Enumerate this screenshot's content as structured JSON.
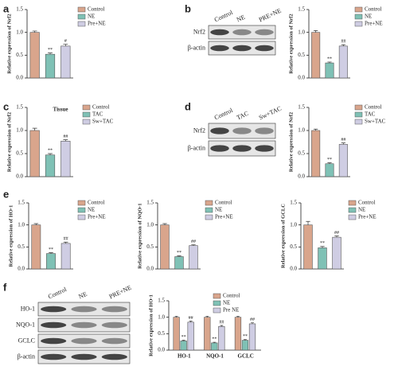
{
  "panel_labels": [
    "a",
    "b",
    "c",
    "d",
    "e",
    "f"
  ],
  "blots": [
    {
      "lanes": [
        "Control",
        "NE",
        "PRE+NE"
      ],
      "rows": [
        "Nrf2",
        "β-actin"
      ]
    },
    {
      "lanes": [
        "Control",
        "TAC",
        "Sw+TAC"
      ],
      "rows": [
        "Nrf2",
        "β-actin"
      ]
    },
    {
      "lanes": [
        "Control",
        "NE",
        "PRE+NE"
      ],
      "rows": [
        "HO-1",
        "NQO-1",
        "GCLC",
        "β-actin"
      ]
    }
  ],
  "chart_data": [
    {
      "type": "bar",
      "y_label": "Relative expression of Nrf2",
      "categories": [
        "Control",
        "NE",
        "Pre+NE"
      ],
      "values": [
        1.0,
        0.52,
        0.7
      ],
      "errors": [
        0.03,
        0.03,
        0.04
      ],
      "annotations": [
        null,
        "**",
        "#"
      ],
      "colors": [
        "#d9a58c",
        "#7fc1b5",
        "#cfcde3"
      ],
      "ylim": [
        0,
        1.5
      ],
      "yticks": [
        {
          "value": 0,
          "label": "0.0"
        },
        0.5,
        {
          "value": 1,
          "label": "1.0"
        },
        1.5
      ]
    },
    {
      "type": "bar",
      "y_label": "Relative expression of Nrf2",
      "categories": [
        "Control",
        "NE",
        "Pre+NE"
      ],
      "values": [
        1.0,
        0.33,
        0.7
      ],
      "errors": [
        0.04,
        0.02,
        0.03
      ],
      "annotations": [
        null,
        "**",
        "##"
      ],
      "colors": [
        "#d9a58c",
        "#7fc1b5",
        "#cfcde3"
      ],
      "ylim": [
        0,
        1.5
      ],
      "yticks": [
        {
          "value": 0,
          "label": "0.0"
        },
        0.5,
        {
          "value": 1,
          "label": "1.0"
        },
        1.5
      ]
    },
    {
      "type": "bar",
      "y_label": "Relative expression of Nrf2",
      "note": "Tissue",
      "categories": [
        "Control",
        "TAC",
        "Sw+TAC"
      ],
      "values": [
        1.0,
        0.47,
        0.77
      ],
      "errors": [
        0.05,
        0.03,
        0.03
      ],
      "annotations": [
        null,
        "**",
        "##"
      ],
      "colors": [
        "#d9a58c",
        "#7fc1b5",
        "#cfcde3"
      ],
      "ylim": [
        0,
        1.5
      ],
      "yticks": [
        {
          "value": 0,
          "label": "0.0"
        },
        0.5,
        {
          "value": 1,
          "label": "1.0"
        },
        1.5
      ]
    },
    {
      "type": "bar",
      "y_label": "Relative expression of Nrf2",
      "categories": [
        "Control",
        "TAC",
        "Sw+TAC"
      ],
      "values": [
        1.0,
        0.28,
        0.7
      ],
      "errors": [
        0.03,
        0.02,
        0.03
      ],
      "annotations": [
        null,
        "**",
        "##"
      ],
      "colors": [
        "#d9a58c",
        "#7fc1b5",
        "#cfcde3"
      ],
      "ylim": [
        0,
        1.5
      ],
      "yticks": [
        {
          "value": 0,
          "label": "0.0"
        },
        0.5,
        {
          "value": 1,
          "label": "1.0"
        },
        1.5
      ]
    },
    {
      "type": "bar",
      "y_label": "Relative expression of HO-1",
      "categories": [
        "Control",
        "NE",
        "Pre+NE"
      ],
      "values": [
        1.0,
        0.35,
        0.58
      ],
      "errors": [
        0.03,
        0.02,
        0.03
      ],
      "annotations": [
        null,
        "**",
        "##"
      ],
      "colors": [
        "#d9a58c",
        "#7fc1b5",
        "#cfcde3"
      ],
      "ylim": [
        0,
        1.5
      ],
      "yticks": [
        {
          "value": 0,
          "label": "0.0"
        },
        0.5,
        {
          "value": 1,
          "label": "1.0"
        },
        1.5
      ]
    },
    {
      "type": "bar",
      "y_label": "Relative expression of NQO-1",
      "categories": [
        "Control",
        "NE",
        "Pre+NE"
      ],
      "values": [
        1.0,
        0.28,
        0.53
      ],
      "errors": [
        0.03,
        0.02,
        0.02
      ],
      "annotations": [
        null,
        "**",
        "##"
      ],
      "colors": [
        "#d9a58c",
        "#7fc1b5",
        "#cfcde3"
      ],
      "ylim": [
        0,
        1.5
      ],
      "yticks": [
        {
          "value": 0,
          "label": "0.0"
        },
        0.5,
        {
          "value": 1,
          "label": "1.0"
        },
        1.5
      ]
    },
    {
      "type": "bar",
      "y_label": "Relative expression of GCLC",
      "categories": [
        "Control",
        "NE",
        "Pre+NE"
      ],
      "values": [
        1.0,
        0.48,
        0.72
      ],
      "errors": [
        0.08,
        0.03,
        0.03
      ],
      "annotations": [
        null,
        "**",
        "##"
      ],
      "colors": [
        "#d9a58c",
        "#7fc1b5",
        "#cfcde3"
      ],
      "ylim": [
        0,
        1.5
      ],
      "yticks": [
        {
          "value": 0,
          "label": "0.0"
        },
        0.5,
        {
          "value": 1,
          "label": "1.0"
        },
        1.5
      ]
    },
    {
      "type": "grouped_bar",
      "y_label": "Relative expression of HO-1",
      "categories": [
        "HO-1",
        "NQO-1",
        "GCLC"
      ],
      "series": [
        {
          "name": "Control",
          "color": "#d9a58c",
          "values": [
            1.0,
            1.0,
            1.0
          ],
          "errors": [
            0.03,
            0.03,
            0.03
          ],
          "annotations": [
            null,
            null,
            null
          ]
        },
        {
          "name": "NE",
          "color": "#7fc1b5",
          "values": [
            0.28,
            0.22,
            0.3
          ],
          "errors": [
            0.02,
            0.02,
            0.02
          ],
          "annotations": [
            "**",
            "**",
            "**"
          ]
        },
        {
          "name": "Pre NE",
          "color": "#cfcde3",
          "values": [
            0.85,
            0.72,
            0.8
          ],
          "errors": [
            0.03,
            0.03,
            0.03
          ],
          "annotations": [
            "##",
            "##",
            "##"
          ]
        }
      ],
      "ylim": [
        0,
        1.5
      ],
      "yticks": [
        {
          "value": 0,
          "label": "0.0"
        },
        0.5,
        {
          "value": 1,
          "label": "1.0"
        },
        1.5
      ]
    }
  ]
}
